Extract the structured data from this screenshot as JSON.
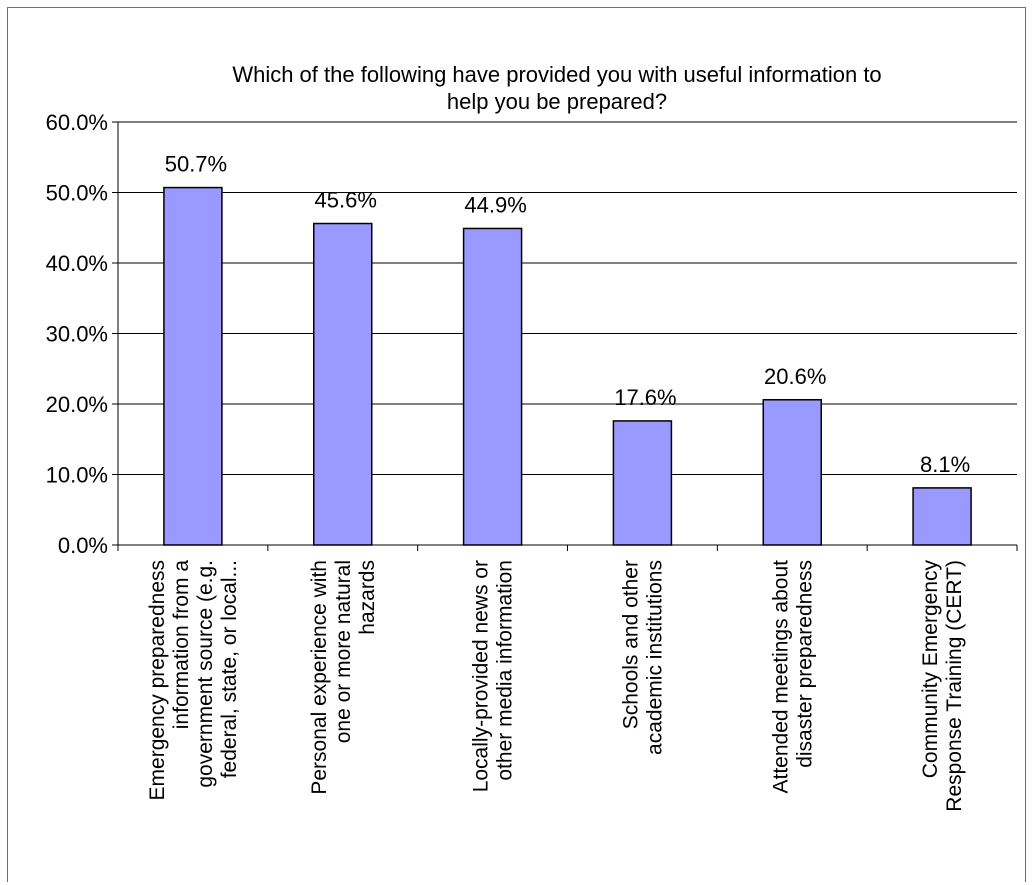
{
  "chart_data": {
    "type": "bar",
    "title_lines": [
      "Which of the following have provided you with useful information to",
      "help you be prepared?"
    ],
    "xlabel": "",
    "ylabel": "",
    "ylim": [
      0,
      60
    ],
    "yticks": [
      0,
      10,
      20,
      30,
      40,
      50,
      60
    ],
    "ytick_labels": [
      "0.0%",
      "10.0%",
      "20.0%",
      "30.0%",
      "40.0%",
      "50.0%",
      "60.0%"
    ],
    "grid": true,
    "legend": "none",
    "bar_color": "#9999ff",
    "bar_outline": "#000000",
    "values": [
      50.7,
      45.6,
      44.9,
      17.6,
      20.6,
      8.1
    ],
    "value_labels": [
      "50.7%",
      "45.6%",
      "44.9%",
      "17.6%",
      "20.6%",
      "8.1%"
    ],
    "categories": [
      [
        "Emergency preparedness",
        "information from a",
        "government source (e.g.",
        "federal, state, or local..."
      ],
      [
        "Personal experience with",
        "one or more natural",
        "hazards"
      ],
      [
        "Locally-provided news or",
        "other media information"
      ],
      [
        "Schools and other",
        "academic institutions"
      ],
      [
        "Attended meetings about",
        "disaster preparedness"
      ],
      [
        "Community Emergency",
        "Response Training (CERT)"
      ]
    ]
  }
}
